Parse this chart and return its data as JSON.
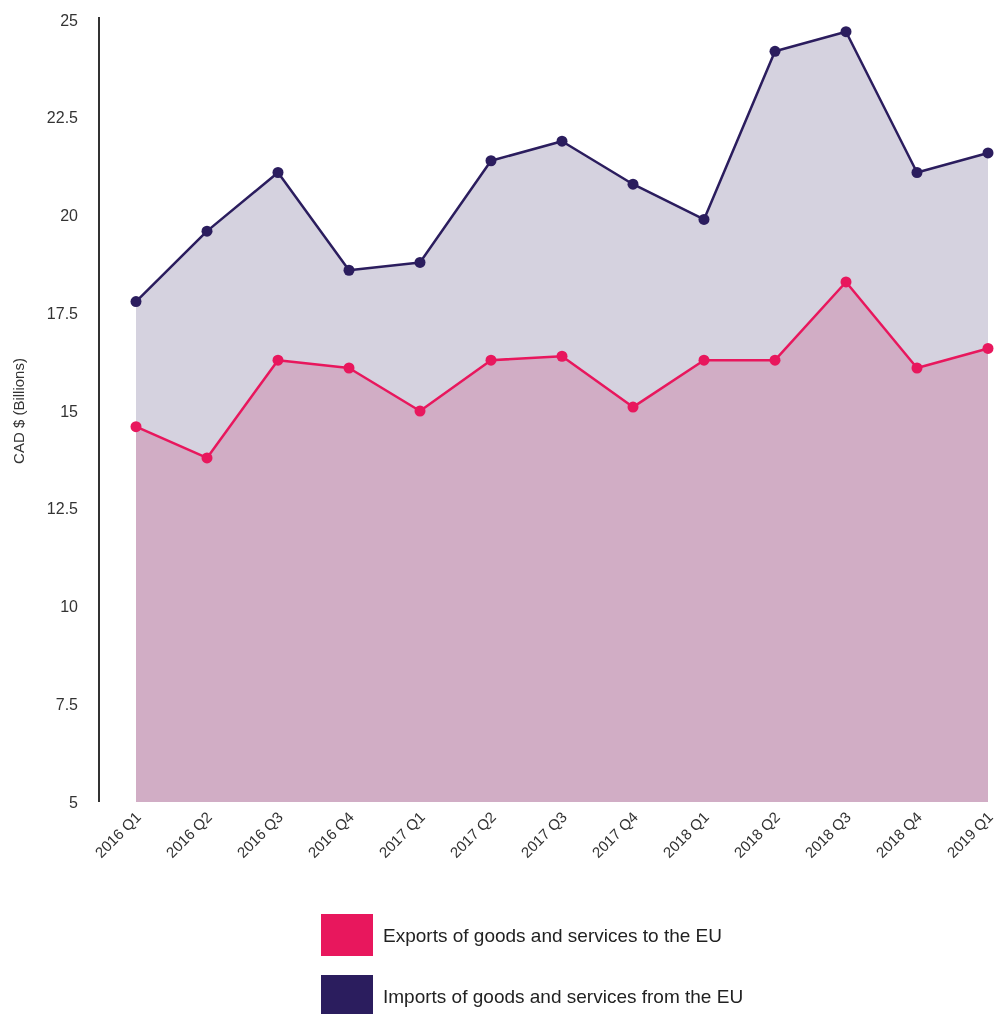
{
  "chart_data": {
    "type": "area",
    "ylabel": "CAD $ (Billions)",
    "categories": [
      "2016 Q1",
      "2016 Q2",
      "2016 Q3",
      "2016 Q4",
      "2017 Q1",
      "2017 Q2",
      "2017 Q3",
      "2017 Q4",
      "2018 Q1",
      "2018 Q2",
      "2018 Q3",
      "2018 Q4",
      "2019 Q1"
    ],
    "series": [
      {
        "name": "Exports of goods and services to the EU",
        "color": "#e8175d",
        "values": [
          14.6,
          13.8,
          16.3,
          16.1,
          15.0,
          16.3,
          16.4,
          15.1,
          16.3,
          16.3,
          18.3,
          16.1,
          16.6
        ]
      },
      {
        "name": "Imports of goods and services from the EU",
        "color": "#2b1d5e",
        "values": [
          17.8,
          19.6,
          21.1,
          18.6,
          18.8,
          21.4,
          21.9,
          20.8,
          19.9,
          24.2,
          24.7,
          21.1,
          21.6
        ]
      }
    ],
    "ylim": [
      5,
      25
    ],
    "yticks": [
      5,
      7.5,
      10,
      12.5,
      15,
      17.5,
      20,
      22.5,
      25
    ],
    "marker": "circle",
    "legend": "bottom"
  }
}
